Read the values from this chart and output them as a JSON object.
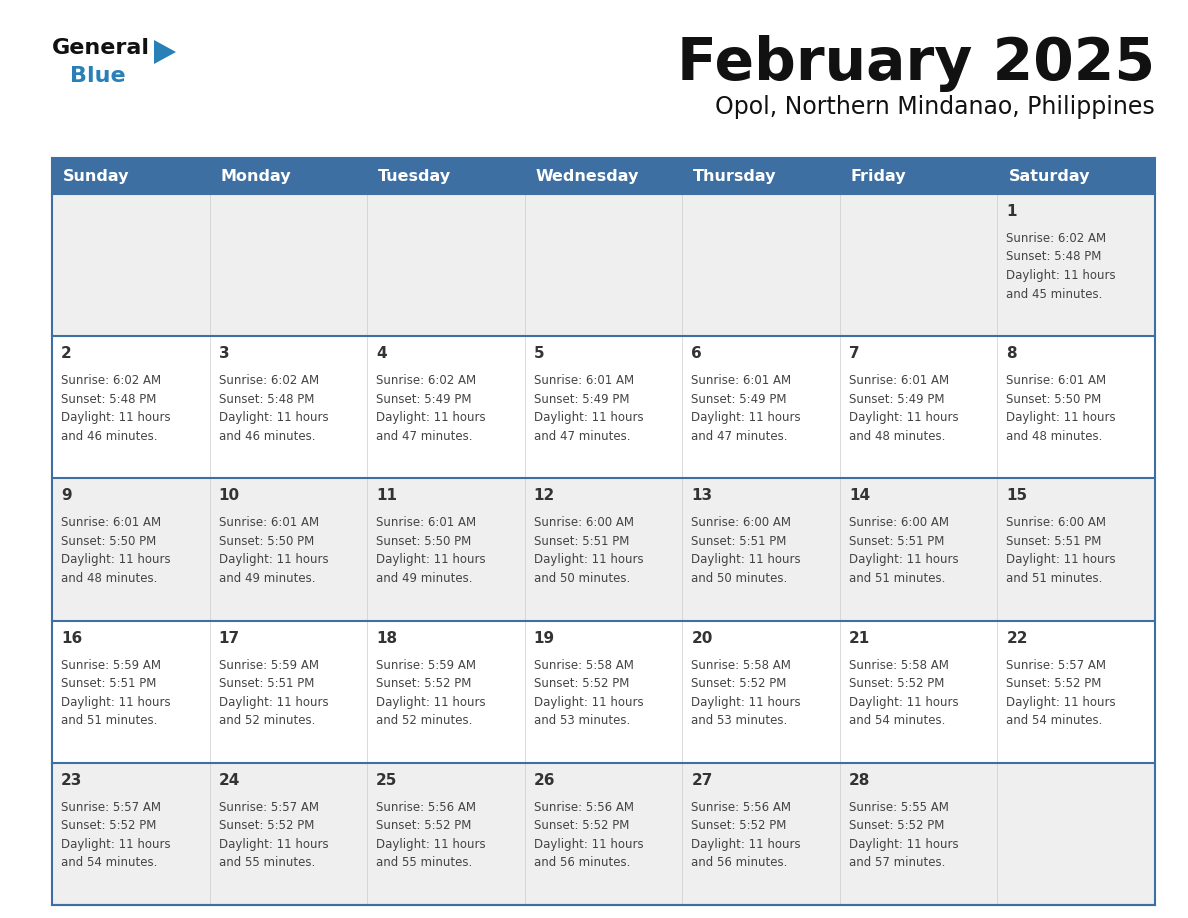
{
  "title": "February 2025",
  "subtitle": "Opol, Northern Mindanao, Philippines",
  "days_of_week": [
    "Sunday",
    "Monday",
    "Tuesday",
    "Wednesday",
    "Thursday",
    "Friday",
    "Saturday"
  ],
  "header_bg": "#3d6fa3",
  "header_text": "#ffffff",
  "row_odd_bg": "#efefef",
  "row_even_bg": "#ffffff",
  "day_text_color": "#333333",
  "info_text_color": "#444444",
  "border_color": "#3d6fa3",
  "title_color": "#111111",
  "subtitle_color": "#111111",
  "logo_general_color": "#111111",
  "logo_blue_color": "#2980b9",
  "logo_triangle_color": "#2980b9",
  "calendar_data": [
    [
      null,
      null,
      null,
      null,
      null,
      null,
      {
        "day": 1,
        "sunrise": "6:02 AM",
        "sunset": "5:48 PM",
        "daylight_hrs": 11,
        "daylight_min": 45
      }
    ],
    [
      {
        "day": 2,
        "sunrise": "6:02 AM",
        "sunset": "5:48 PM",
        "daylight_hrs": 11,
        "daylight_min": 46
      },
      {
        "day": 3,
        "sunrise": "6:02 AM",
        "sunset": "5:48 PM",
        "daylight_hrs": 11,
        "daylight_min": 46
      },
      {
        "day": 4,
        "sunrise": "6:02 AM",
        "sunset": "5:49 PM",
        "daylight_hrs": 11,
        "daylight_min": 47
      },
      {
        "day": 5,
        "sunrise": "6:01 AM",
        "sunset": "5:49 PM",
        "daylight_hrs": 11,
        "daylight_min": 47
      },
      {
        "day": 6,
        "sunrise": "6:01 AM",
        "sunset": "5:49 PM",
        "daylight_hrs": 11,
        "daylight_min": 47
      },
      {
        "day": 7,
        "sunrise": "6:01 AM",
        "sunset": "5:49 PM",
        "daylight_hrs": 11,
        "daylight_min": 48
      },
      {
        "day": 8,
        "sunrise": "6:01 AM",
        "sunset": "5:50 PM",
        "daylight_hrs": 11,
        "daylight_min": 48
      }
    ],
    [
      {
        "day": 9,
        "sunrise": "6:01 AM",
        "sunset": "5:50 PM",
        "daylight_hrs": 11,
        "daylight_min": 48
      },
      {
        "day": 10,
        "sunrise": "6:01 AM",
        "sunset": "5:50 PM",
        "daylight_hrs": 11,
        "daylight_min": 49
      },
      {
        "day": 11,
        "sunrise": "6:01 AM",
        "sunset": "5:50 PM",
        "daylight_hrs": 11,
        "daylight_min": 49
      },
      {
        "day": 12,
        "sunrise": "6:00 AM",
        "sunset": "5:51 PM",
        "daylight_hrs": 11,
        "daylight_min": 50
      },
      {
        "day": 13,
        "sunrise": "6:00 AM",
        "sunset": "5:51 PM",
        "daylight_hrs": 11,
        "daylight_min": 50
      },
      {
        "day": 14,
        "sunrise": "6:00 AM",
        "sunset": "5:51 PM",
        "daylight_hrs": 11,
        "daylight_min": 51
      },
      {
        "day": 15,
        "sunrise": "6:00 AM",
        "sunset": "5:51 PM",
        "daylight_hrs": 11,
        "daylight_min": 51
      }
    ],
    [
      {
        "day": 16,
        "sunrise": "5:59 AM",
        "sunset": "5:51 PM",
        "daylight_hrs": 11,
        "daylight_min": 51
      },
      {
        "day": 17,
        "sunrise": "5:59 AM",
        "sunset": "5:51 PM",
        "daylight_hrs": 11,
        "daylight_min": 52
      },
      {
        "day": 18,
        "sunrise": "5:59 AM",
        "sunset": "5:52 PM",
        "daylight_hrs": 11,
        "daylight_min": 52
      },
      {
        "day": 19,
        "sunrise": "5:58 AM",
        "sunset": "5:52 PM",
        "daylight_hrs": 11,
        "daylight_min": 53
      },
      {
        "day": 20,
        "sunrise": "5:58 AM",
        "sunset": "5:52 PM",
        "daylight_hrs": 11,
        "daylight_min": 53
      },
      {
        "day": 21,
        "sunrise": "5:58 AM",
        "sunset": "5:52 PM",
        "daylight_hrs": 11,
        "daylight_min": 54
      },
      {
        "day": 22,
        "sunrise": "5:57 AM",
        "sunset": "5:52 PM",
        "daylight_hrs": 11,
        "daylight_min": 54
      }
    ],
    [
      {
        "day": 23,
        "sunrise": "5:57 AM",
        "sunset": "5:52 PM",
        "daylight_hrs": 11,
        "daylight_min": 54
      },
      {
        "day": 24,
        "sunrise": "5:57 AM",
        "sunset": "5:52 PM",
        "daylight_hrs": 11,
        "daylight_min": 55
      },
      {
        "day": 25,
        "sunrise": "5:56 AM",
        "sunset": "5:52 PM",
        "daylight_hrs": 11,
        "daylight_min": 55
      },
      {
        "day": 26,
        "sunrise": "5:56 AM",
        "sunset": "5:52 PM",
        "daylight_hrs": 11,
        "daylight_min": 56
      },
      {
        "day": 27,
        "sunrise": "5:56 AM",
        "sunset": "5:52 PM",
        "daylight_hrs": 11,
        "daylight_min": 56
      },
      {
        "day": 28,
        "sunrise": "5:55 AM",
        "sunset": "5:52 PM",
        "daylight_hrs": 11,
        "daylight_min": 57
      },
      null
    ]
  ]
}
